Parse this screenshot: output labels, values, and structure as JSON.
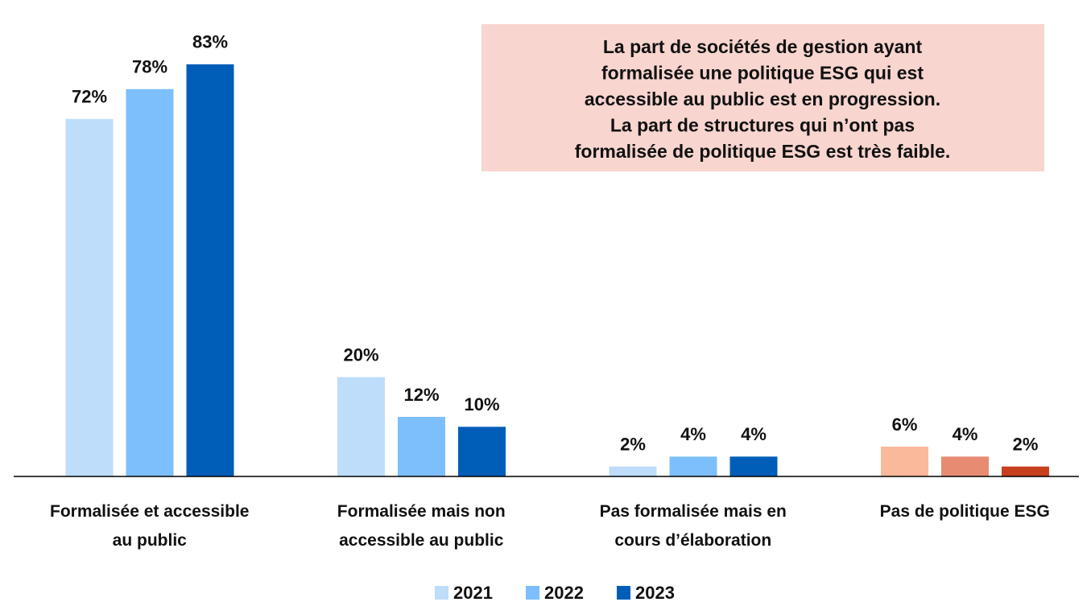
{
  "chart_data": {
    "type": "bar",
    "annotation": [
      "La part de sociétés de gestion ayant",
      "formalisée une politique ESG qui est",
      "accessible au public est en progression.",
      "La part de structures qui n’ont pas",
      "formalisée de politique ESG est très faible."
    ],
    "categories": [
      "Formalisée et accessible\nau public",
      "Formalisée mais non\naccessible au public",
      "Pas formalisée mais en\ncours d’élaboration",
      "Pas de politique ESG"
    ],
    "series": [
      {
        "name": "2021",
        "color": "#BDDDFB",
        "colors": [
          "#BDDDFB",
          "#BDDDFB",
          "#BDDDFB",
          "#F9B99A"
        ],
        "values": [
          72,
          20,
          2,
          6
        ],
        "value_labels": [
          "72%",
          "20%",
          "2%",
          "6%"
        ]
      },
      {
        "name": "2022",
        "color": "#7DBFFC",
        "colors": [
          "#7DBFFC",
          "#7DBFFC",
          "#7DBFFC",
          "#E88B73"
        ],
        "values": [
          78,
          12,
          4,
          4
        ],
        "value_labels": [
          "78%",
          "12%",
          "4%",
          "4%"
        ]
      },
      {
        "name": "2023",
        "color": "#005EB8",
        "colors": [
          "#005EB8",
          "#005EB8",
          "#005EB8",
          "#C9401E"
        ],
        "values": [
          83,
          10,
          4,
          2
        ],
        "value_labels": [
          "83%",
          "10%",
          "4%",
          "2%"
        ]
      }
    ],
    "ylim": [
      0,
      100
    ],
    "legend": "bottom"
  }
}
